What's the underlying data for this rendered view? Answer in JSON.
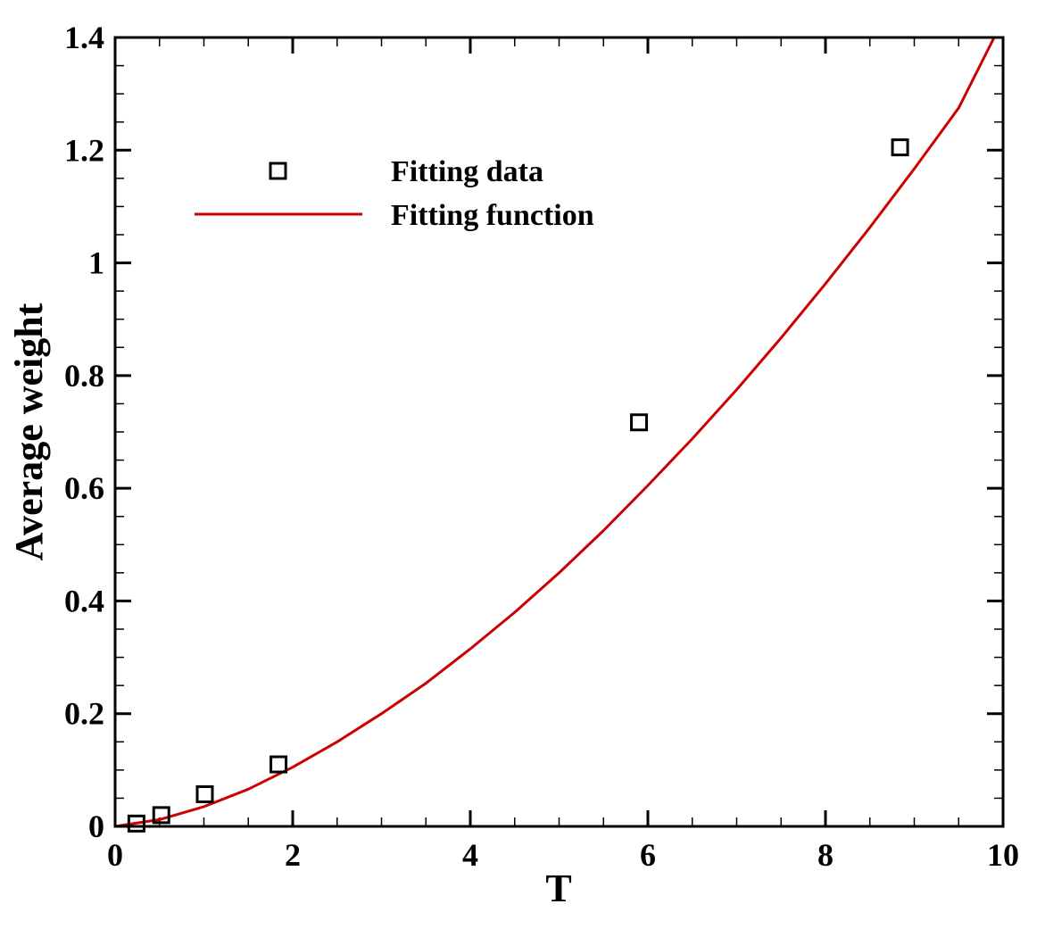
{
  "chart_data": {
    "type": "scatter",
    "xlabel": "T",
    "ylabel": "Average weight",
    "xlim": [
      0,
      10
    ],
    "ylim": [
      0,
      1.4
    ],
    "x_ticks": [
      "0",
      "2",
      "4",
      "6",
      "8",
      "10"
    ],
    "y_ticks": [
      "0",
      "0.2",
      "0.4",
      "0.6",
      "0.8",
      "1",
      "1.2",
      "1.4"
    ],
    "x_tick_values": [
      0,
      2,
      4,
      6,
      8,
      10
    ],
    "y_tick_values": [
      0,
      0.2,
      0.4,
      0.6,
      0.8,
      1.0,
      1.2,
      1.4
    ],
    "x_minor_step": 0.5,
    "y_minor_step": 0.05,
    "grid": false,
    "legend_position": "top-left",
    "series": [
      {
        "name": "Fitting data",
        "kind": "markers",
        "marker": "square",
        "color": "#000000",
        "points": [
          [
            0.24,
            0.005
          ],
          [
            0.52,
            0.02
          ],
          [
            1.01,
            0.057
          ],
          [
            1.84,
            0.11
          ],
          [
            5.9,
            0.717
          ],
          [
            8.84,
            1.205
          ]
        ]
      },
      {
        "name": "Fitting function",
        "kind": "line",
        "color": "#cc0000",
        "points": [
          [
            0.0,
            0.0
          ],
          [
            0.5,
            0.012
          ],
          [
            1.0,
            0.035
          ],
          [
            1.5,
            0.066
          ],
          [
            2.0,
            0.105
          ],
          [
            2.5,
            0.15
          ],
          [
            3.0,
            0.2
          ],
          [
            3.5,
            0.254
          ],
          [
            4.0,
            0.315
          ],
          [
            4.5,
            0.38
          ],
          [
            5.0,
            0.45
          ],
          [
            5.5,
            0.525
          ],
          [
            6.0,
            0.605
          ],
          [
            6.5,
            0.688
          ],
          [
            7.0,
            0.775
          ],
          [
            7.5,
            0.867
          ],
          [
            8.0,
            0.963
          ],
          [
            8.5,
            1.063
          ],
          [
            9.0,
            1.167
          ],
          [
            9.5,
            1.275
          ],
          [
            9.9,
            1.4
          ]
        ]
      }
    ]
  }
}
